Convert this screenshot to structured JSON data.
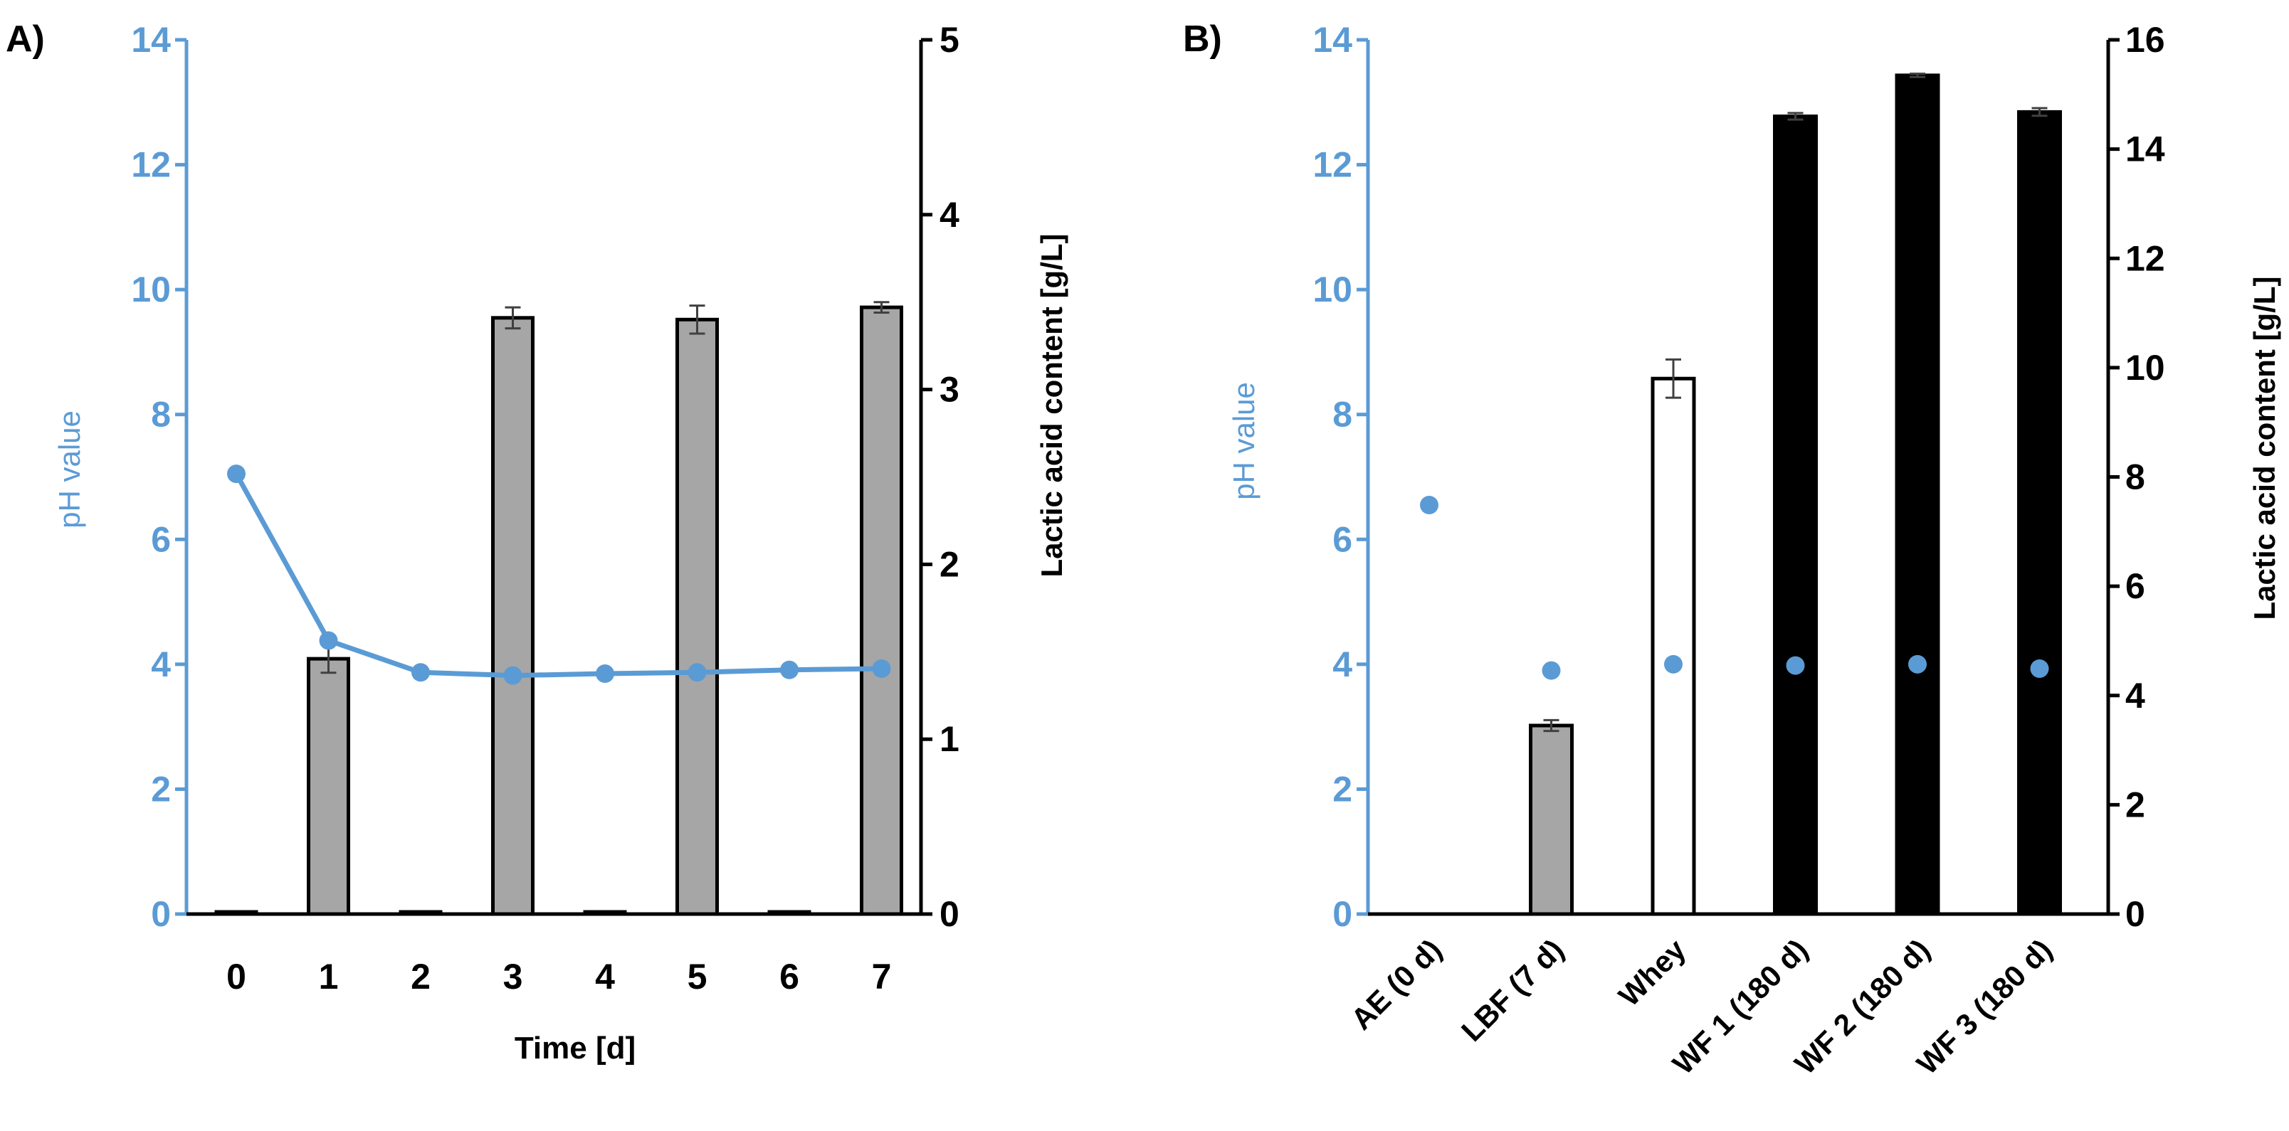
{
  "colors": {
    "ph": "#5b9bd5",
    "axis_right": "#000000",
    "bar_gray": "#a6a6a6",
    "bar_white": "#ffffff",
    "bar_black": "#000000",
    "error": "#404040"
  },
  "chart_data": [
    {
      "panel_label": "A)",
      "type": "bar",
      "xlabel": "Time [d]",
      "ylabel": "pH value",
      "ylabel_right": "Lactic acid content [g/L]",
      "ylim": [
        0,
        14
      ],
      "ylim_right": [
        0,
        5
      ],
      "yticks": [
        "0",
        "2",
        "4",
        "6",
        "8",
        "10",
        "12",
        "14"
      ],
      "yticks_right": [
        "0",
        "1",
        "2",
        "3",
        "4",
        "5"
      ],
      "categories": [
        "0",
        "1",
        "2",
        "3",
        "4",
        "5",
        "6",
        "7"
      ],
      "series": [
        {
          "name": "Lactic acid content",
          "axis": "right",
          "kind": "bar",
          "values": [
            0,
            1.46,
            0,
            3.41,
            0,
            3.4,
            0,
            3.47
          ],
          "errors": [
            0,
            0.08,
            0,
            0.06,
            0,
            0.08,
            0,
            0.03
          ],
          "fills": [
            "gray",
            "gray",
            "gray",
            "gray",
            "gray",
            "gray",
            "gray",
            "gray"
          ]
        },
        {
          "name": "pH value",
          "axis": "left",
          "kind": "line",
          "values": [
            7.05,
            4.38,
            3.87,
            3.82,
            3.85,
            3.87,
            3.91,
            3.93
          ]
        }
      ]
    },
    {
      "panel_label": "B)",
      "type": "bar",
      "xlabel": "",
      "ylabel": "pH value",
      "ylabel_right": "Lactic acid content [g/L]",
      "ylim": [
        0,
        14
      ],
      "ylim_right": [
        0,
        16
      ],
      "yticks": [
        "0",
        "2",
        "4",
        "6",
        "8",
        "10",
        "12",
        "14"
      ],
      "yticks_right": [
        "0",
        "2",
        "4",
        "6",
        "8",
        "10",
        "12",
        "14",
        "16"
      ],
      "categories": [
        "AE (0 d)",
        "LBF (7 d)",
        "Whey",
        "WF 1 (180 d)",
        "WF 2 (180 d)",
        "WF 3 (180 d)"
      ],
      "series": [
        {
          "name": "Lactic acid content",
          "axis": "right",
          "kind": "bar",
          "values": [
            0,
            3.45,
            9.8,
            14.6,
            15.35,
            14.68
          ],
          "errors": [
            0,
            0.1,
            0.35,
            0.06,
            0.03,
            0.07
          ],
          "fills": [
            "none",
            "gray",
            "white",
            "black",
            "black",
            "black"
          ]
        },
        {
          "name": "pH value",
          "axis": "left",
          "kind": "scatter",
          "values": [
            6.55,
            3.9,
            4.0,
            3.98,
            4.0,
            3.93
          ]
        }
      ]
    }
  ]
}
